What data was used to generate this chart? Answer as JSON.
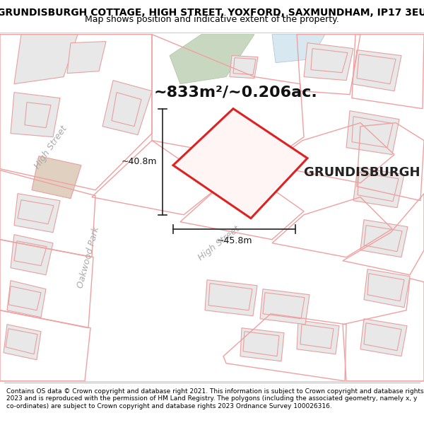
{
  "title": "GRUNDISBURGH COTTAGE, HIGH STREET, YOXFORD, SAXMUNDHAM, IP17 3EU",
  "subtitle": "Map shows position and indicative extent of the property.",
  "area_text": "~833m²/~0.206ac.",
  "property_label": "GRUNDISBURGH COTTAGE",
  "dim_height": "~40.8m",
  "dim_width": "~45.8m",
  "street_label_ul": "High Street",
  "street_label_ll": "High Street",
  "street_label_oakwood": "Oakwood Park",
  "copyright_text": "Contains OS data © Crown copyright and database right 2021. This information is subject to Crown copyright and database rights 2023 and is reproduced with the permission of HM Land Registry. The polygons (including the associated geometry, namely x, y co-ordinates) are subject to Crown copyright and database rights 2023 Ordnance Survey 100026316.",
  "map_bg": "#ffffff",
  "header_bg": "#ffffff",
  "footer_bg": "#ffffff",
  "building_fill": "#e8e8e8",
  "building_edge": "#e8a0a0",
  "green_fill": "#c8d8c0",
  "green_edge": "#b0c8a8",
  "blue_fill": "#d8e8f0",
  "blue_edge": "#b0c8d8",
  "road_fill": "#ffffff",
  "plot_edge": "#dd2222",
  "plot_fill": "#ffffff",
  "dim_line_color": "#222222",
  "title_fontsize": 10,
  "subtitle_fontsize": 9,
  "area_fontsize": 16,
  "label_fontsize": 13,
  "dim_fontsize": 9,
  "street_fontsize": 9
}
